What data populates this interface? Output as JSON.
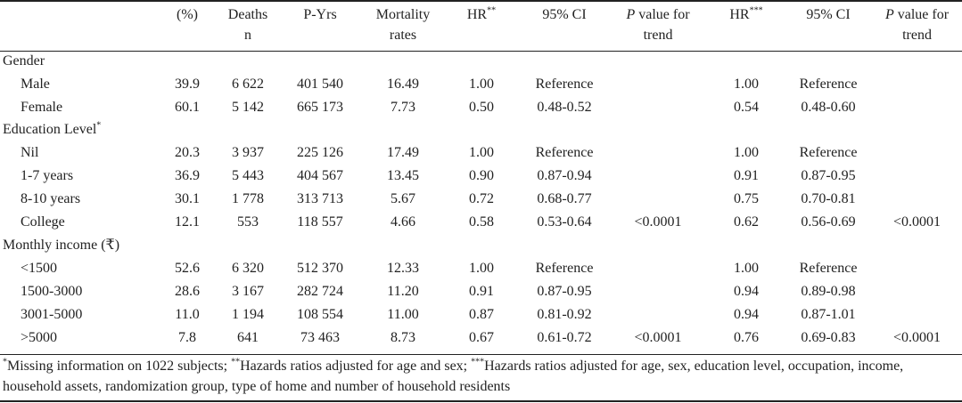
{
  "header": {
    "pct": "(%)",
    "deaths": "Deaths",
    "deaths_unit": "n",
    "pyrs": "P-Yrs",
    "mortality": "Mortality",
    "mortality_2": "rates",
    "hr1": "HR",
    "hr1_sup": "**",
    "ci1": "95% CI",
    "p_italic": "P",
    "p_rest": " value for",
    "p_trend": "trend",
    "hr2": "HR",
    "hr2_sup": "***",
    "ci2": "95% CI"
  },
  "rows": [
    {
      "type": "section",
      "label": "Gender"
    },
    {
      "type": "data",
      "label": "Male",
      "pct": "39.9",
      "deaths": "6 622",
      "pyrs": "401 540",
      "mort": "16.49",
      "hr1": "1.00",
      "ci1": "Reference",
      "p1": "",
      "hr2": "1.00",
      "ci2": "Reference",
      "p2": ""
    },
    {
      "type": "data",
      "label": "Female",
      "pct": "60.1",
      "deaths": "5 142",
      "pyrs": "665 173",
      "mort": "7.73",
      "hr1": "0.50",
      "ci1": "0.48-0.52",
      "p1": "",
      "hr2": "0.54",
      "ci2": "0.48-0.60",
      "p2": ""
    },
    {
      "type": "section",
      "label": "Education Level",
      "sup": "*"
    },
    {
      "type": "data",
      "label": "Nil",
      "pct": "20.3",
      "deaths": "3 937",
      "pyrs": "225 126",
      "mort": "17.49",
      "hr1": "1.00",
      "ci1": "Reference",
      "p1": "",
      "hr2": "1.00",
      "ci2": "Reference",
      "p2": ""
    },
    {
      "type": "data",
      "label": "1-7 years",
      "pct": "36.9",
      "deaths": "5 443",
      "pyrs": "404 567",
      "mort": "13.45",
      "hr1": "0.90",
      "ci1": "0.87-0.94",
      "p1": "",
      "hr2": "0.91",
      "ci2": "0.87-0.95",
      "p2": ""
    },
    {
      "type": "data",
      "label": "8-10 years",
      "pct": "30.1",
      "deaths": "1 778",
      "pyrs": "313 713",
      "mort": "5.67",
      "hr1": "0.72",
      "ci1": "0.68-0.77",
      "p1": "",
      "hr2": "0.75",
      "ci2": "0.70-0.81",
      "p2": ""
    },
    {
      "type": "data",
      "label": "College",
      "pct": "12.1",
      "deaths": "553",
      "pyrs": "118 557",
      "mort": "4.66",
      "hr1": "0.58",
      "ci1": "0.53-0.64",
      "p1": "<0.0001",
      "hr2": "0.62",
      "ci2": "0.56-0.69",
      "p2": "<0.0001"
    },
    {
      "type": "section",
      "label": "Monthly income (₹)"
    },
    {
      "type": "data",
      "label": "<1500",
      "pct": "52.6",
      "deaths": "6 320",
      "pyrs": "512 370",
      "mort": "12.33",
      "hr1": "1.00",
      "ci1": "Reference",
      "p1": "",
      "hr2": "1.00",
      "ci2": "Reference",
      "p2": ""
    },
    {
      "type": "data",
      "label": "1500-3000",
      "pct": "28.6",
      "deaths": "3 167",
      "pyrs": "282 724",
      "mort": "11.20",
      "hr1": "0.91",
      "ci1": "0.87-0.95",
      "p1": "",
      "hr2": "0.94",
      "ci2": "0.89-0.98",
      "p2": ""
    },
    {
      "type": "data",
      "label": "3001-5000",
      "pct": "11.0",
      "deaths": "1 194",
      "pyrs": "108 554",
      "mort": "11.00",
      "hr1": "0.87",
      "ci1": "0.81-0.92",
      "p1": "",
      "hr2": "0.94",
      "ci2": "0.87-1.01",
      "p2": ""
    },
    {
      "type": "data",
      "label": ">5000",
      "pct": "7.8",
      "deaths": "641",
      "pyrs": "73 463",
      "mort": "8.73",
      "hr1": "0.67",
      "ci1": "0.61-0.72",
      "p1": "<0.0001",
      "hr2": "0.76",
      "ci2": "0.69-0.83",
      "p2": "<0.0001"
    }
  ],
  "footnote": {
    "sup1": "*",
    "text1": "Missing information on 1022 subjects; ",
    "sup2": "**",
    "text2": "Hazards ratios adjusted for age and sex; ",
    "sup3": "***",
    "text3": "Hazards ratios adjusted for age, sex, education level, occupation, income, household assets, randomization group, type of home and number of household residents"
  }
}
